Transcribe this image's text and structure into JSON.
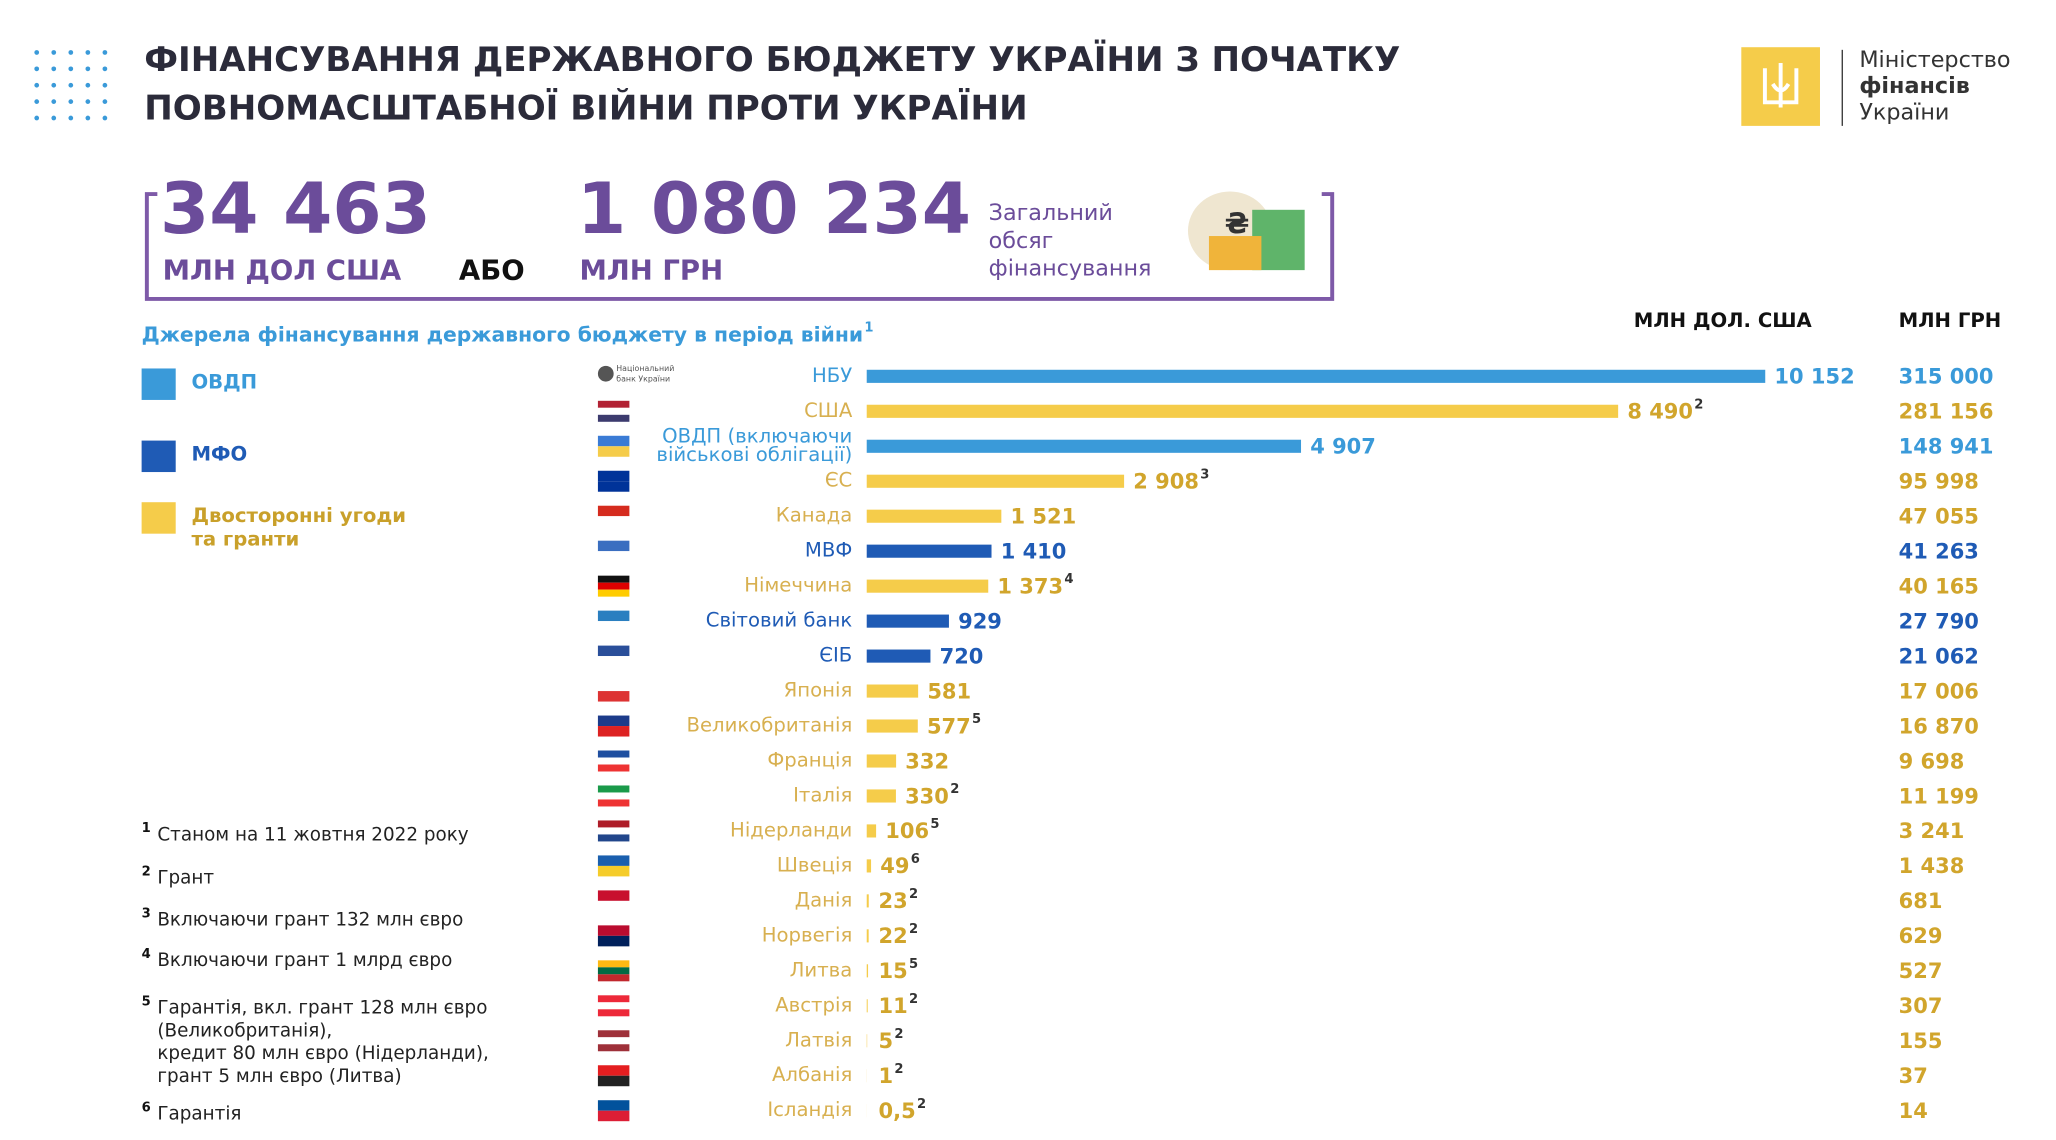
{
  "header": {
    "title": [
      "ФІНАНСУВАННЯ ДЕРЖАВНОГО БЮДЖЕТУ УКРАЇНИ З ПОЧАТКУ",
      "ПОВНОМАСШТАБНОЇ ВІЙНИ ПРОТИ УКРАЇНИ"
    ],
    "ministry": [
      "Міністерство",
      "фінансів",
      "України"
    ]
  },
  "totals": {
    "usd": "34 463",
    "usd_unit": "МЛН ДОЛ США",
    "or": "АБО",
    "uah": "1 080 234",
    "uah_unit": "МЛН ГРН",
    "caption": [
      "Загальний",
      "обсяг",
      "фінансування"
    ]
  },
  "chart_data": {
    "type": "bar",
    "orientation": "horizontal",
    "title": "Джерела фінансування державного бюджету в період війни",
    "title_note": "1",
    "column_headers": [
      "МЛН ДОЛ. США",
      "МЛН ГРН"
    ],
    "legend": [
      {
        "name": [
          "ОВДП"
        ],
        "color": "#3a9ad9"
      },
      {
        "name": [
          "МФО"
        ],
        "color": "#1f5bb5"
      },
      {
        "name": [
          "Двосторонні угоди",
          "та гранти"
        ],
        "color": "#f5cc4a"
      }
    ],
    "nbu_logo": [
      "Національний",
      "банк України"
    ],
    "categories": [
      "НБУ",
      "США",
      [
        "ОВДП (включаючи",
        "військові облігації)"
      ],
      "ЄС",
      "Канада",
      "МВФ",
      "Німеччина",
      "Світовий банк",
      "ЄІБ",
      "Японія",
      "Великобританія",
      "Франція",
      "Італія",
      "Нідерланди",
      "Швеція",
      "Данія",
      "Норвегія",
      "Литва",
      "Австрія",
      "Латвія",
      "Албанія",
      "Ісландія"
    ],
    "groups": [
      0,
      2,
      0,
      2,
      2,
      1,
      2,
      1,
      1,
      2,
      2,
      2,
      2,
      2,
      2,
      2,
      2,
      2,
      2,
      2,
      2,
      2
    ],
    "values": [
      10152,
      8490,
      4907,
      2908,
      1521,
      1410,
      1373,
      929,
      720,
      581,
      577,
      332,
      330,
      106,
      49,
      23,
      22,
      15,
      11,
      5,
      1,
      0.5
    ],
    "value_labels": [
      "10 152",
      "8 490",
      "4 907",
      "2 908",
      "1 521",
      "1 410",
      "1 373",
      "929",
      "720",
      "581",
      "577",
      "332",
      "330",
      "106",
      "49",
      "23",
      "22",
      "15",
      "11",
      "5",
      "1",
      "0,5"
    ],
    "notes": [
      null,
      "2",
      null,
      "3",
      null,
      null,
      "4",
      null,
      null,
      null,
      "5",
      null,
      "2",
      "5",
      "6",
      "2",
      "2",
      "5",
      "2",
      "2",
      "2",
      "2"
    ],
    "uah": [
      "315 000",
      "281 156",
      "148 941",
      "95 998",
      "47 055",
      "41 263",
      "40 165",
      "27 790",
      "21 062",
      "17 006",
      "16 870",
      "9 698",
      "11 199",
      "3 241",
      "1 438",
      "681",
      "629",
      "527",
      "307",
      "155",
      "37",
      "14"
    ],
    "xlim": [
      0,
      12000
    ]
  },
  "footnotes": [
    {
      "mark": "1",
      "lines": [
        "Станом на 11 жовтня 2022 року"
      ]
    },
    {
      "mark": "2",
      "lines": [
        "Грант"
      ]
    },
    {
      "mark": "3",
      "lines": [
        "Включаючи грант 132 млн євро"
      ]
    },
    {
      "mark": "4",
      "lines": [
        "Включаючи грант 1 млрд євро"
      ]
    },
    {
      "mark": "5",
      "lines": [
        "Гарантія, вкл. грант 128 млн євро",
        "(Великобританія),",
        "кредит 80 млн  євро (Нідерланди),",
        "грант 5 млн євро (Литва)"
      ]
    },
    {
      "mark": "6",
      "lines": [
        "Гарантія"
      ]
    }
  ]
}
